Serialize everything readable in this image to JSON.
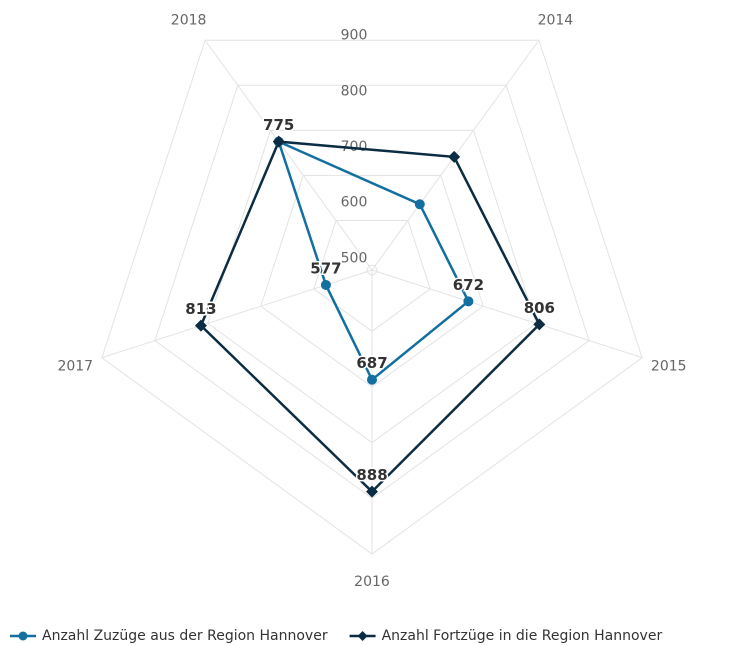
{
  "chart_data": {
    "type": "radar",
    "categories": [
      "2014",
      "2015",
      "2016",
      "2017",
      "2018"
    ],
    "ylim": [
      490,
      1000
    ],
    "yticks": [
      500,
      600,
      700,
      800,
      900
    ],
    "grid": true,
    "legend": "bottom",
    "series": [
      {
        "name": "Anzahl Zuzüge aus der Region Hannover",
        "color": "#136fa0",
        "marker": "circle",
        "values": [
          636,
          672,
          687,
          577,
          775
        ],
        "show_labels": [
          false,
          true,
          true,
          true,
          true
        ]
      },
      {
        "name": "Anzahl Fortzüge in die Region Hannover",
        "color": "#0b2c43",
        "marker": "diamond",
        "values": [
          741,
          806,
          888,
          813,
          775
        ],
        "show_labels": [
          false,
          true,
          true,
          true,
          false
        ]
      }
    ]
  }
}
